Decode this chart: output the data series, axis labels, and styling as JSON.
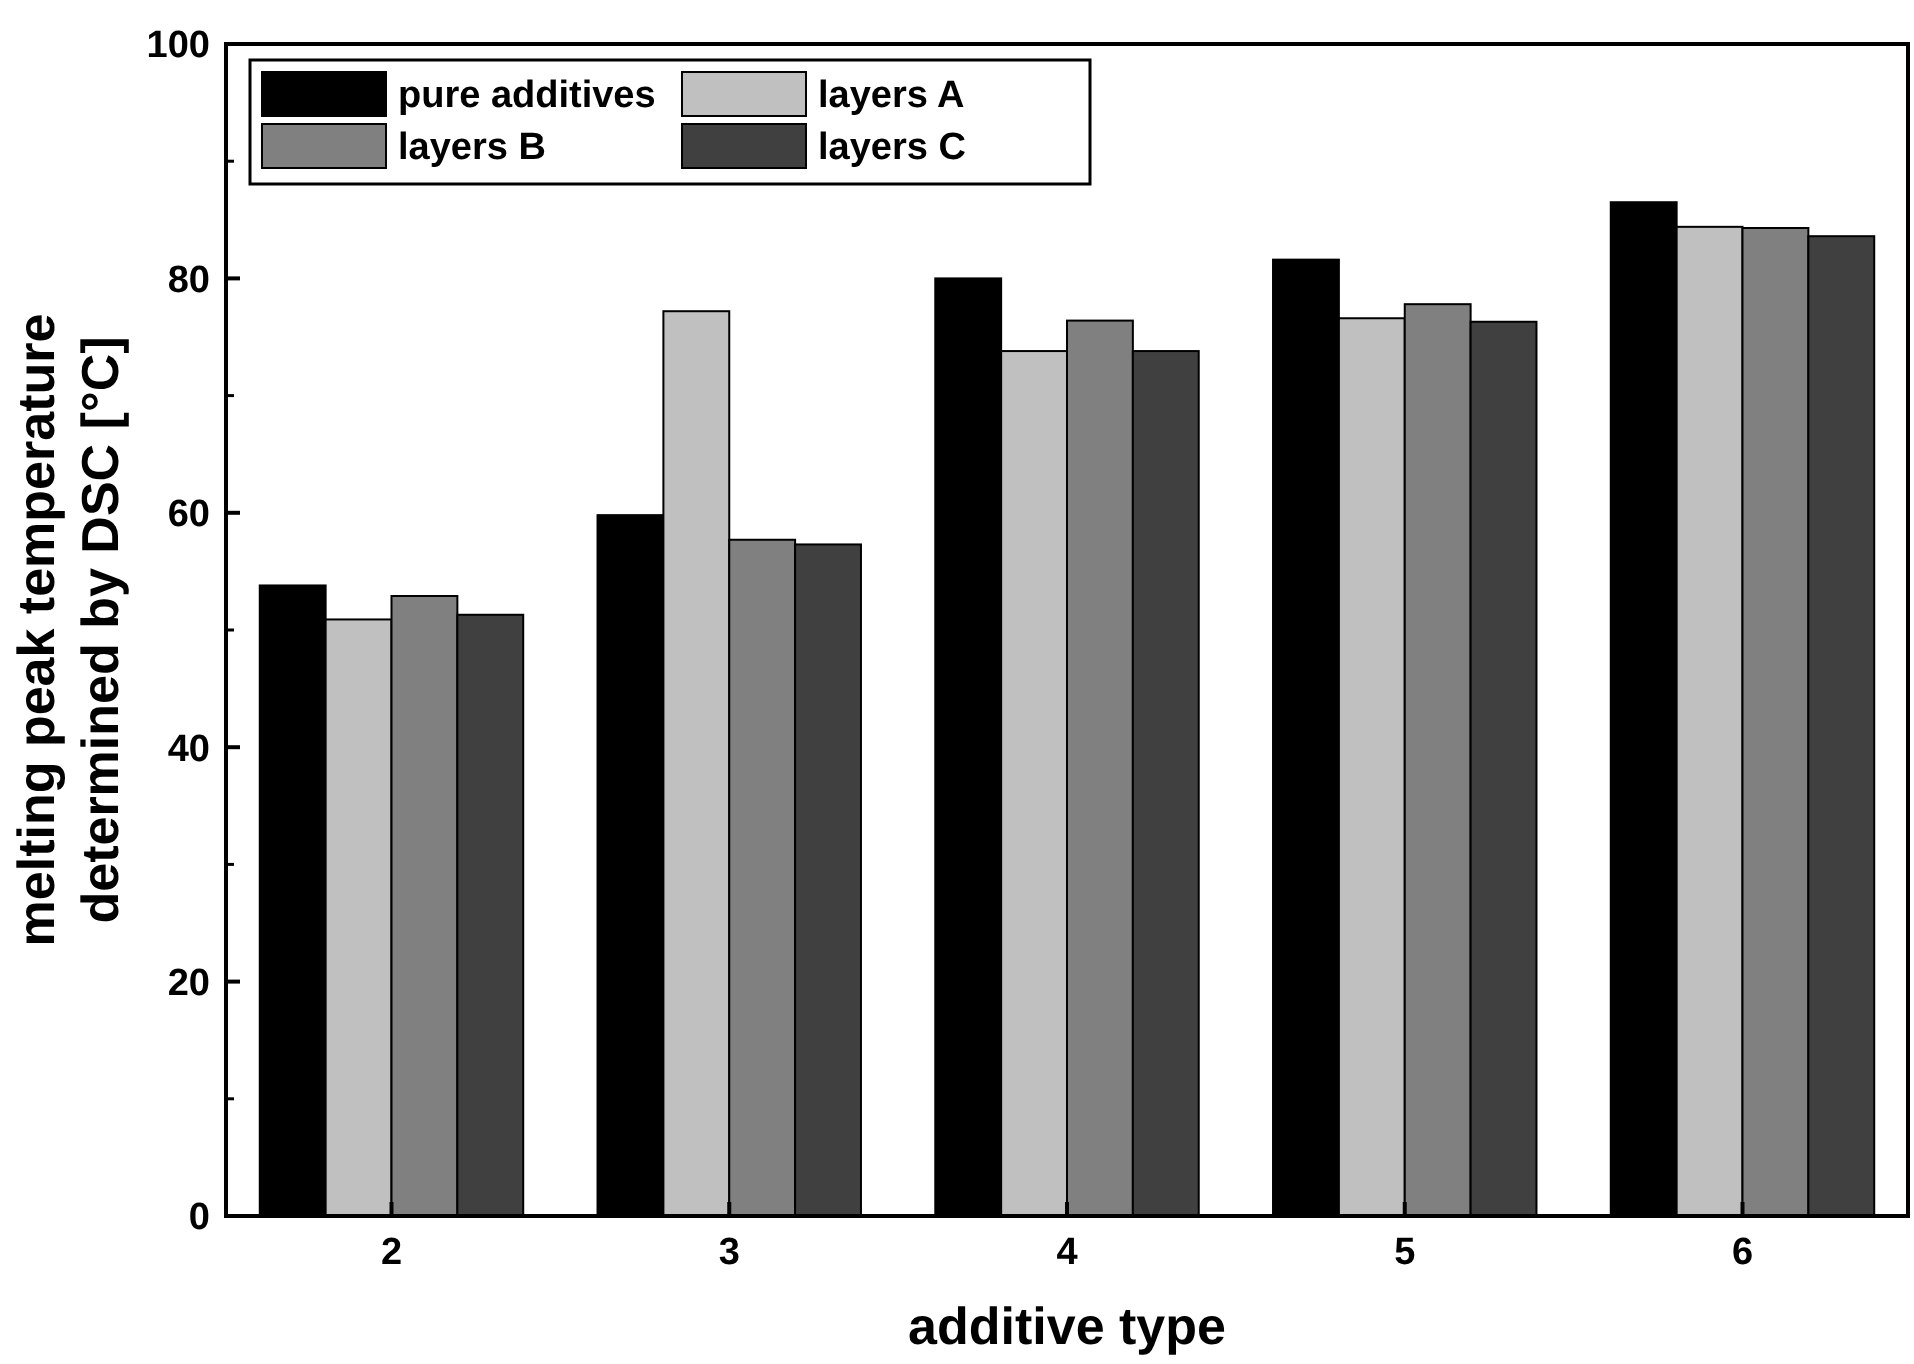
{
  "chart_data": {
    "type": "bar",
    "xlabel": "additive type",
    "ylabel": "melting peak temperature\ndetermined by DSC [°C]",
    "categories": [
      "2",
      "3",
      "4",
      "5",
      "6"
    ],
    "series": [
      {
        "name": "pure additives",
        "color": "#000000",
        "values": [
          53.8,
          59.8,
          80.0,
          81.6,
          86.5
        ]
      },
      {
        "name": "layers A",
        "color": "#c0c0c0",
        "values": [
          50.9,
          77.2,
          73.8,
          76.6,
          84.4
        ]
      },
      {
        "name": "layers B",
        "color": "#808080",
        "values": [
          52.9,
          57.7,
          76.4,
          77.8,
          84.3
        ]
      },
      {
        "name": "layers C",
        "color": "#404040",
        "values": [
          51.3,
          57.3,
          73.8,
          76.3,
          83.6
        ]
      }
    ],
    "ylim": [
      0,
      100
    ],
    "yticks": [
      0,
      20,
      40,
      60,
      80,
      100
    ],
    "grid": false,
    "legend": "top left"
  }
}
